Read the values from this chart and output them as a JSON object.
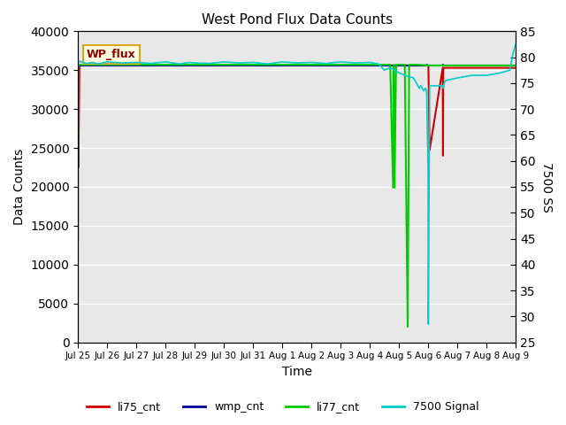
{
  "title": "West Pond Flux Data Counts",
  "ylabel_left": "Data Counts",
  "ylabel_right": "7500 SS",
  "xlabel": "Time",
  "annotation_text": "WP_flux",
  "ylim_left": [
    0,
    40000
  ],
  "ylim_right": [
    25,
    85
  ],
  "xlim": [
    0,
    15
  ],
  "xtick_labels": [
    "Jul 25",
    "Jul 26",
    "Jul 27",
    "Jul 28",
    "Jul 29",
    "Jul 30",
    "Jul 31",
    "Aug 1",
    "Aug 2",
    "Aug 3",
    "Aug 4",
    "Aug 5",
    "Aug 6",
    "Aug 7",
    "Aug 8",
    "Aug 9"
  ],
  "xtick_positions": [
    0,
    1,
    2,
    3,
    4,
    5,
    6,
    7,
    8,
    9,
    10,
    11,
    12,
    13,
    14,
    15
  ],
  "ytick_left": [
    0,
    5000,
    10000,
    15000,
    20000,
    25000,
    30000,
    35000,
    40000
  ],
  "ytick_right": [
    25,
    30,
    35,
    40,
    45,
    50,
    55,
    60,
    65,
    70,
    75,
    80,
    85
  ],
  "bg_color": "#e8e8e8",
  "legend_colors": [
    "#cc0000",
    "#000099",
    "#00cc00",
    "#00cccc"
  ],
  "legend_labels": [
    "li75_cnt",
    "wmp_cnt",
    "li77_cnt",
    "7500 Signal"
  ],
  "li75_color": "#cc0000",
  "wmp_color": "#000099",
  "li77_color": "#00cc00",
  "sig_color": "#00cccc",
  "li75_lw": 1.5,
  "wmp_lw": 1.5,
  "li77_lw": 1.5,
  "sig_lw": 1.2,
  "li75_x": [
    0.0,
    0.01,
    0.015,
    0.05,
    11.95,
    11.96,
    11.97,
    12.0,
    12.01,
    12.05,
    12.5,
    12.51,
    12.52,
    12.56,
    13.0,
    15.0
  ],
  "li75_y": [
    35600,
    35600,
    22500,
    35600,
    35600,
    35600,
    35600,
    35600,
    35600,
    24700,
    35300,
    24000,
    35300,
    35300,
    35300,
    35300
  ],
  "wmp_x": [
    0.0,
    11.9,
    11.95,
    11.96,
    11.97,
    12.0,
    12.5,
    12.51,
    12.52,
    12.56,
    15.0
  ],
  "wmp_y": [
    35600,
    35600,
    35600,
    35700,
    35600,
    35600,
    35600,
    35700,
    35600,
    35600,
    35600
  ],
  "li77_x": [
    0.0,
    10.5,
    10.52,
    10.55,
    10.6,
    10.7,
    10.8,
    10.82,
    10.85,
    10.9,
    11.0,
    11.05,
    11.1,
    11.15,
    11.2,
    11.3,
    11.35,
    11.4,
    11.45,
    11.5,
    11.55,
    11.6,
    12.0,
    12.5,
    15.0
  ],
  "li77_y": [
    35700,
    35700,
    35700,
    35700,
    35700,
    35700,
    19900,
    35700,
    19900,
    35700,
    35700,
    35700,
    35700,
    35700,
    35700,
    2000,
    35700,
    35700,
    35700,
    35700,
    35700,
    35700,
    35600,
    35600,
    35600
  ],
  "sig_x": [
    0.0,
    0.005,
    0.01,
    0.05,
    0.3,
    0.5,
    0.7,
    1.0,
    1.5,
    2.0,
    2.5,
    3.0,
    3.5,
    3.8,
    4.0,
    4.5,
    5.0,
    5.5,
    6.0,
    6.5,
    7.0,
    7.5,
    8.0,
    8.5,
    9.0,
    9.5,
    10.0,
    10.3,
    10.5,
    10.7,
    11.0,
    11.2,
    11.5,
    11.55,
    11.6,
    11.65,
    11.7,
    11.75,
    11.8,
    11.85,
    11.9,
    11.95,
    12.0,
    12.005,
    12.01,
    12.05,
    12.1,
    12.5,
    12.505,
    12.51,
    12.55,
    12.6,
    13.0,
    13.5,
    14.0,
    14.5,
    14.8,
    14.9,
    15.0
  ],
  "sig_y": [
    80,
    44.5,
    79.0,
    79.2,
    78.8,
    79.0,
    78.7,
    79.1,
    78.9,
    79.0,
    78.8,
    79.1,
    78.7,
    79.0,
    78.9,
    78.8,
    79.1,
    78.9,
    79.0,
    78.7,
    79.1,
    78.9,
    79.0,
    78.8,
    79.1,
    78.9,
    79.0,
    78.7,
    77.5,
    78.0,
    77.0,
    76.5,
    76.0,
    75.5,
    75.0,
    74.5,
    74.0,
    74.5,
    74.0,
    73.5,
    74.0,
    73.5,
    58.0,
    29.0,
    28.5,
    74.5,
    74.5,
    74.5,
    74.5,
    74.0,
    75.0,
    75.5,
    76.0,
    76.5,
    76.5,
    77.0,
    77.5,
    80.5,
    82.5
  ]
}
